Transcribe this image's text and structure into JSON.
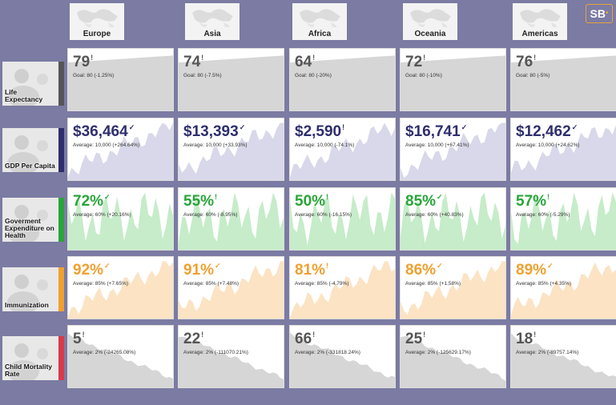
{
  "logo": {
    "text": "SB",
    "dot": "•"
  },
  "regions": [
    {
      "name": "Europe"
    },
    {
      "name": "Asia"
    },
    {
      "name": "Africa"
    },
    {
      "name": "Oceania"
    },
    {
      "name": "Americas"
    }
  ],
  "metrics": [
    {
      "label": "Life Expectancy",
      "accent": "#555555",
      "value_color": "#555555",
      "fill": "#d6d6d6",
      "cells": [
        {
          "value": "79",
          "mark": "!",
          "sub": "Goal: 80 (-1.25%)"
        },
        {
          "value": "74",
          "mark": "!",
          "sub": "Goal: 80 (-7.5%)"
        },
        {
          "value": "64",
          "mark": "!",
          "sub": "Goal: 80 (-20%)"
        },
        {
          "value": "72",
          "mark": "!",
          "sub": "Goal: 80 (-10%)"
        },
        {
          "value": "76",
          "mark": "!",
          "sub": "Goal: 80 (-5%)"
        }
      ]
    },
    {
      "label": "GDP Per Capita",
      "accent": "#2e2e6e",
      "value_color": "#2e2e6e",
      "fill": "#d8d8ea",
      "cells": [
        {
          "value": "$36,464",
          "mark": "✓",
          "sub": "Average: 10,000 (+264.64%)"
        },
        {
          "value": "$13,393",
          "mark": "✓",
          "sub": "Average: 10,000 (+33.93%)"
        },
        {
          "value": "$2,590",
          "mark": "!",
          "sub": "Average: 10,000 (-74.1%)"
        },
        {
          "value": "$16,741",
          "mark": "✓",
          "sub": "Average: 10,000 (+67.41%)"
        },
        {
          "value": "$12,462",
          "mark": "✓",
          "sub": "Average: 10,000 (+24.62%)"
        }
      ]
    },
    {
      "label": "Goverment Expenditure on Health",
      "accent": "#2aa53a",
      "value_color": "#2aa53a",
      "fill": "#c6ecc9",
      "cells": [
        {
          "value": "72%",
          "mark": "✓",
          "sub": "Average: 60% (+20.16%)"
        },
        {
          "value": "55%",
          "mark": "!",
          "sub": "Average: 60% (-8.95%)"
        },
        {
          "value": "50%",
          "mark": "!",
          "sub": "Average: 60% (-16.15%)"
        },
        {
          "value": "85%",
          "mark": "✓",
          "sub": "Average: 60% (+40.83%)"
        },
        {
          "value": "57%",
          "mark": "!",
          "sub": "Average: 60% (-5.29%)"
        }
      ]
    },
    {
      "label": "Immunization",
      "accent": "#f0a030",
      "value_color": "#f0a030",
      "fill": "#fbe3c4",
      "cells": [
        {
          "value": "92%",
          "mark": "✓",
          "sub": "Average: 85% (+7.65%)"
        },
        {
          "value": "91%",
          "mark": "✓",
          "sub": "Average: 85% (+7.48%)"
        },
        {
          "value": "81%",
          "mark": "!",
          "sub": "Average: 85% (-4.79%)"
        },
        {
          "value": "86%",
          "mark": "✓",
          "sub": "Average: 85% (+1.58%)"
        },
        {
          "value": "89%",
          "mark": "✓",
          "sub": "Average: 85% (+4.35%)"
        }
      ]
    },
    {
      "label": "Child Mortality Rate",
      "accent": "#d83a4a",
      "value_color": "#555555",
      "fill": "#d6d6d6",
      "cells": [
        {
          "value": "5",
          "mark": "!",
          "sub": "Average: 2% (-24265.08%)"
        },
        {
          "value": "22",
          "mark": "!",
          "sub": "Average: 2% (-111070.21%)"
        },
        {
          "value": "66",
          "mark": "!",
          "sub": "Average: 2% (-331818.24%)"
        },
        {
          "value": "25",
          "mark": "!",
          "sub": "Average: 2% (-125629.17%)"
        },
        {
          "value": "18",
          "mark": "!",
          "sub": "Average: 2% (-89757.14%)"
        }
      ]
    }
  ]
}
